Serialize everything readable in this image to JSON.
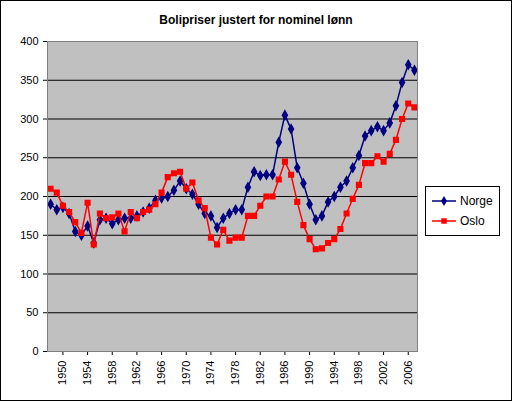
{
  "chart_data": {
    "type": "line",
    "title": "Bolipriser justert for nominel lønn",
    "x": [
      1948,
      1949,
      1950,
      1951,
      1952,
      1953,
      1954,
      1955,
      1956,
      1957,
      1958,
      1959,
      1960,
      1961,
      1962,
      1963,
      1964,
      1965,
      1966,
      1967,
      1968,
      1969,
      1970,
      1971,
      1972,
      1973,
      1974,
      1975,
      1976,
      1977,
      1978,
      1979,
      1980,
      1981,
      1982,
      1983,
      1984,
      1985,
      1986,
      1987,
      1988,
      1989,
      1990,
      1991,
      1992,
      1993,
      1994,
      1995,
      1996,
      1997,
      1998,
      1999,
      2000,
      2001,
      2002,
      2003,
      2004,
      2005,
      2006,
      2007
    ],
    "series": [
      {
        "name": "Norge",
        "color": "#000080",
        "marker": "diamond",
        "values": [
          190,
          183,
          186,
          178,
          155,
          150,
          162,
          140,
          170,
          172,
          165,
          170,
          172,
          172,
          175,
          180,
          185,
          195,
          198,
          200,
          208,
          220,
          210,
          203,
          190,
          178,
          175,
          160,
          172,
          178,
          183,
          183,
          212,
          232,
          227,
          228,
          228,
          270,
          305,
          287,
          237,
          217,
          190,
          170,
          175,
          193,
          200,
          212,
          220,
          237,
          253,
          278,
          285,
          290,
          285,
          295,
          317,
          347,
          370,
          363
        ]
      },
      {
        "name": "Oslo",
        "color": "#ff0000",
        "marker": "square",
        "values": [
          210,
          205,
          188,
          180,
          167,
          153,
          192,
          138,
          178,
          172,
          173,
          178,
          155,
          180,
          172,
          180,
          183,
          190,
          205,
          225,
          230,
          232,
          210,
          218,
          195,
          185,
          147,
          138,
          157,
          143,
          147,
          147,
          175,
          175,
          188,
          200,
          200,
          222,
          245,
          228,
          193,
          163,
          145,
          132,
          133,
          140,
          145,
          158,
          178,
          197,
          215,
          243,
          243,
          252,
          245,
          255,
          273,
          300,
          320,
          315
        ]
      }
    ],
    "xlim": [
      1947.5,
      2007.5
    ],
    "xticks": [
      1950,
      1954,
      1958,
      1962,
      1966,
      1970,
      1974,
      1978,
      1982,
      1986,
      1990,
      1994,
      1998,
      2002,
      2006
    ],
    "ylim": [
      0,
      400
    ],
    "yticks": [
      0,
      50,
      100,
      150,
      200,
      250,
      300,
      350,
      400
    ],
    "grid": true,
    "legend": "right"
  }
}
